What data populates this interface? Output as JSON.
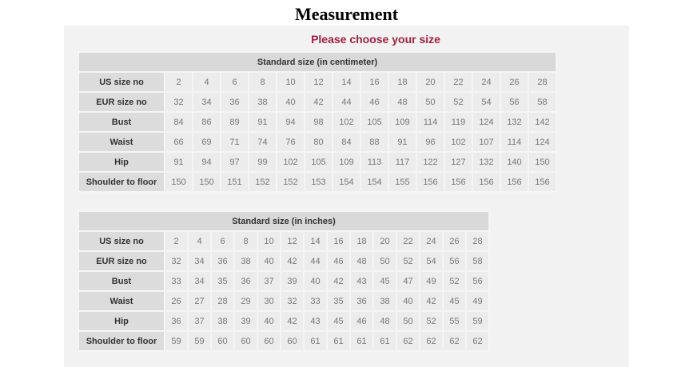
{
  "title": "Measurement",
  "subtitle": "Please choose your size",
  "tables": [
    {
      "caption": "Standard size (in centimeter)",
      "rows": [
        {
          "label": "US size no",
          "values": [
            "2",
            "4",
            "6",
            "8",
            "10",
            "12",
            "14",
            "16",
            "18",
            "20",
            "22",
            "24",
            "26",
            "28"
          ]
        },
        {
          "label": "EUR size no",
          "values": [
            "32",
            "34",
            "36",
            "38",
            "40",
            "42",
            "44",
            "46",
            "48",
            "50",
            "52",
            "54",
            "56",
            "58"
          ]
        },
        {
          "label": "Bust",
          "values": [
            "84",
            "86",
            "89",
            "91",
            "94",
            "98",
            "102",
            "105",
            "109",
            "114",
            "119",
            "124",
            "132",
            "142"
          ]
        },
        {
          "label": "Waist",
          "values": [
            "66",
            "69",
            "71",
            "74",
            "76",
            "80",
            "84",
            "88",
            "91",
            "96",
            "102",
            "107",
            "114",
            "124"
          ]
        },
        {
          "label": "Hip",
          "values": [
            "91",
            "94",
            "97",
            "99",
            "102",
            "105",
            "109",
            "113",
            "117",
            "122",
            "127",
            "132",
            "140",
            "150"
          ]
        },
        {
          "label": "Shoulder to floor",
          "values": [
            "150",
            "150",
            "151",
            "152",
            "152",
            "153",
            "154",
            "154",
            "155",
            "156",
            "156",
            "156",
            "156",
            "156"
          ]
        }
      ]
    },
    {
      "caption": "Standard size (in inches)",
      "rows": [
        {
          "label": "US size no",
          "values": [
            "2",
            "4",
            "6",
            "8",
            "10",
            "12",
            "14",
            "16",
            "18",
            "20",
            "22",
            "24",
            "26",
            "28"
          ]
        },
        {
          "label": "EUR size no",
          "values": [
            "32",
            "34",
            "36",
            "38",
            "40",
            "42",
            "44",
            "46",
            "48",
            "50",
            "52",
            "54",
            "56",
            "58"
          ]
        },
        {
          "label": "Bust",
          "values": [
            "33",
            "34",
            "35",
            "36",
            "37",
            "39",
            "40",
            "42",
            "43",
            "45",
            "47",
            "49",
            "52",
            "56"
          ]
        },
        {
          "label": "Waist",
          "values": [
            "26",
            "27",
            "28",
            "29",
            "30",
            "32",
            "33",
            "35",
            "36",
            "38",
            "40",
            "42",
            "45",
            "49"
          ]
        },
        {
          "label": "Hip",
          "values": [
            "36",
            "37",
            "38",
            "39",
            "40",
            "42",
            "43",
            "45",
            "46",
            "48",
            "50",
            "52",
            "55",
            "59"
          ]
        },
        {
          "label": "Shoulder to floor",
          "values": [
            "59",
            "59",
            "60",
            "60",
            "60",
            "60",
            "61",
            "61",
            "61",
            "61",
            "62",
            "62",
            "62",
            "62"
          ]
        }
      ]
    }
  ]
}
